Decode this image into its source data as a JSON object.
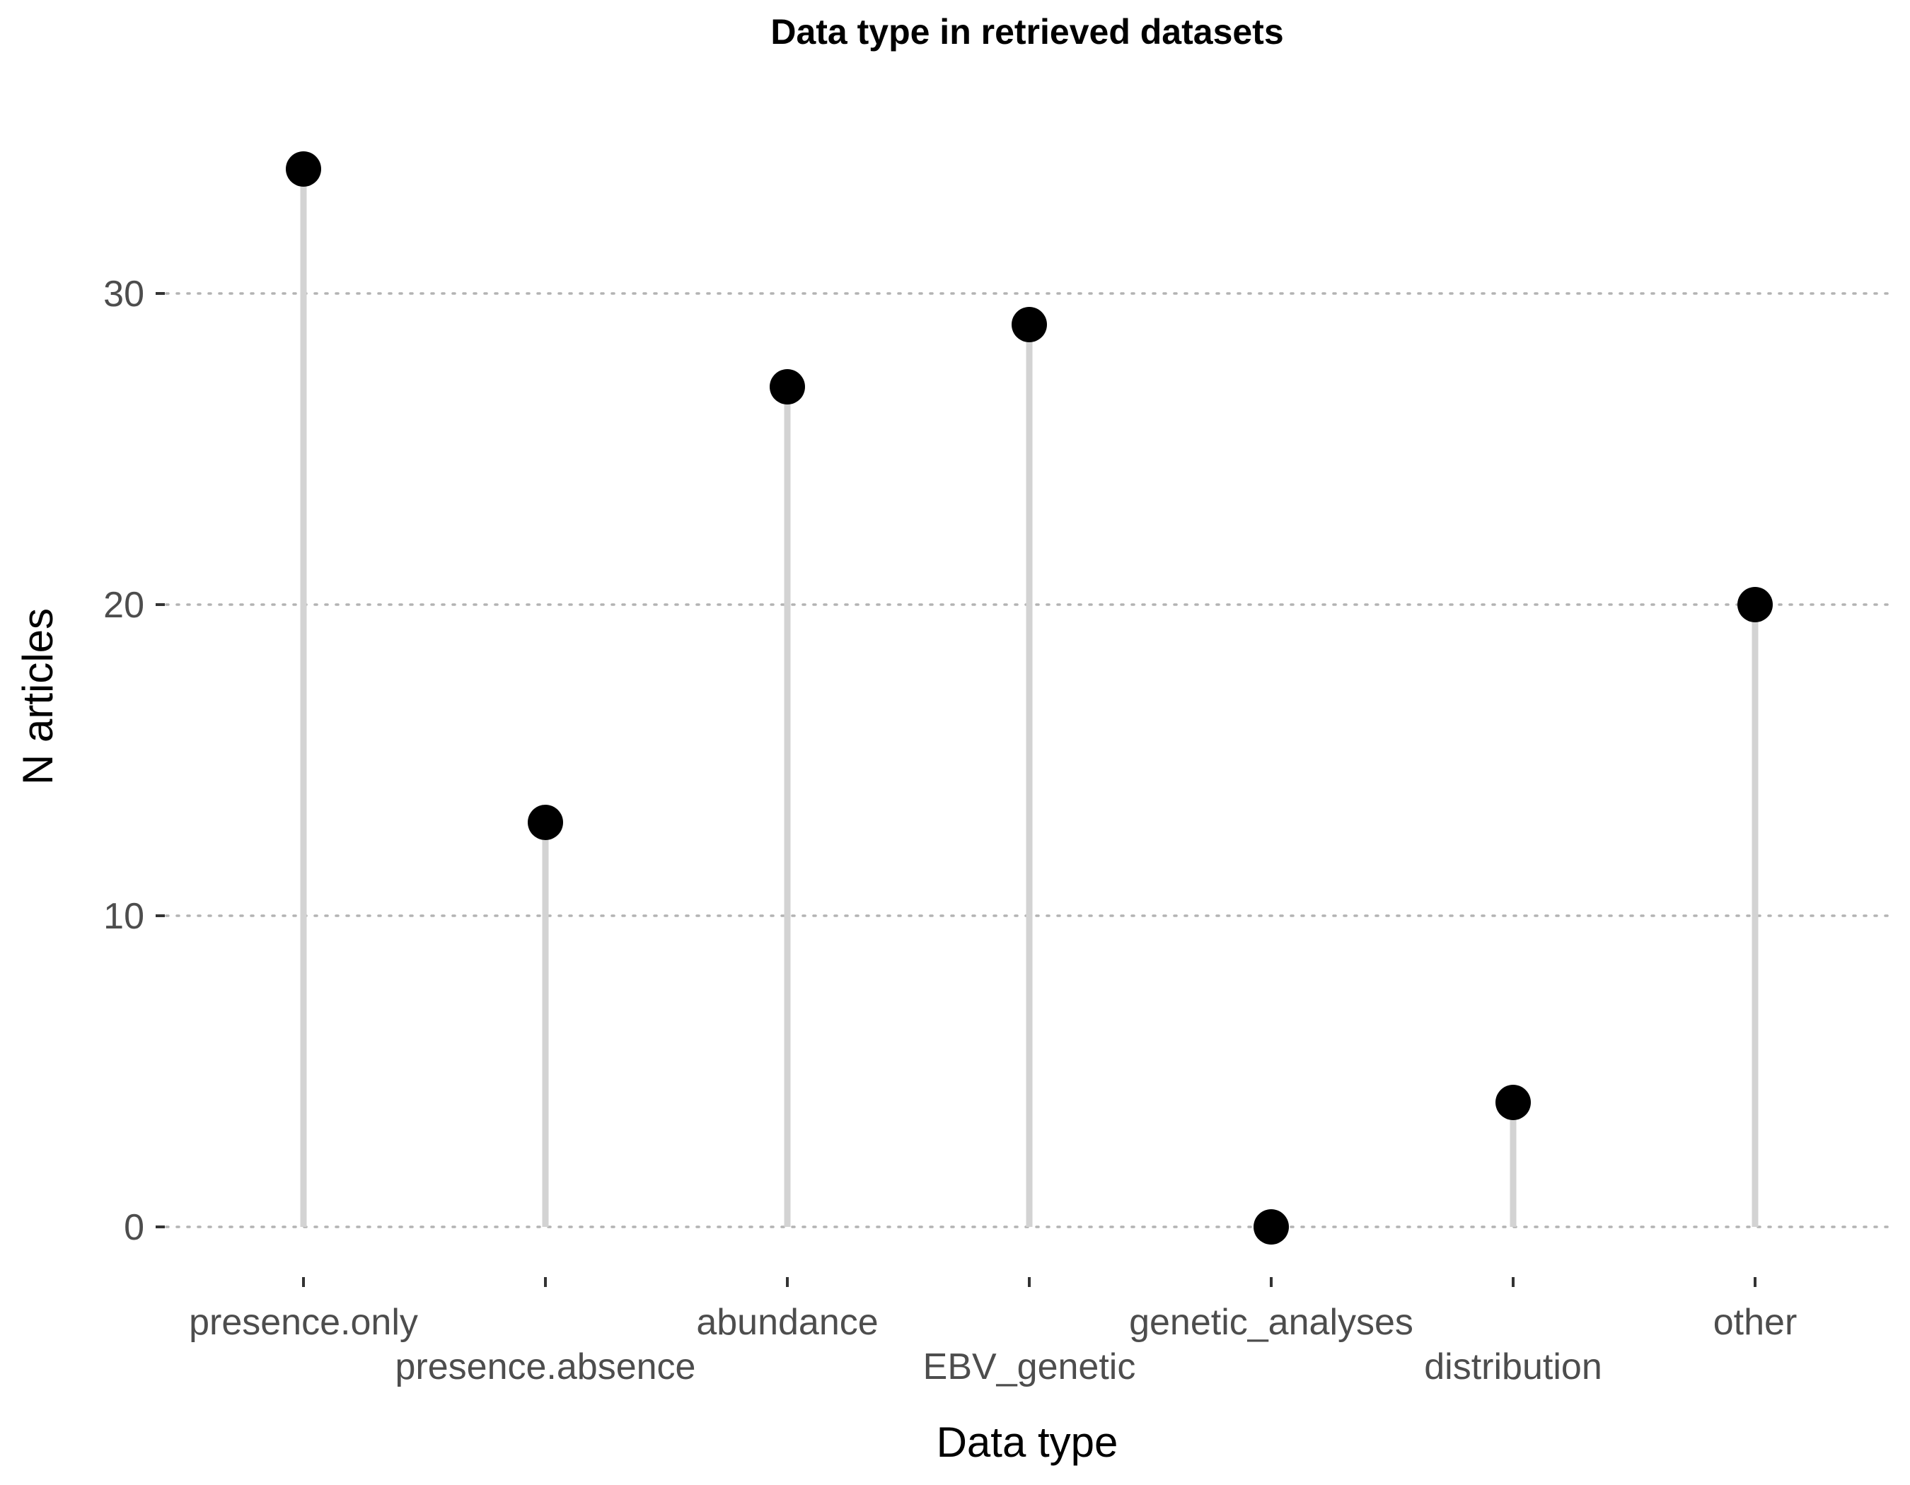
{
  "chart_data": {
    "type": "lollipop",
    "title": "Data type in retrieved datasets",
    "xlabel": "Data type",
    "ylabel": "N articles",
    "categories": [
      "presence.only",
      "presence.absence",
      "abundance",
      "EBV_genetic",
      "genetic_analyses",
      "distribution",
      "other"
    ],
    "values": [
      34,
      13,
      27,
      29,
      0,
      4,
      20
    ],
    "yticks": [
      0,
      10,
      20,
      30
    ],
    "ylim": [
      -1.5,
      35.5
    ],
    "grid": "horizontal dotted major",
    "legend": "none",
    "colors": {
      "stem": "#d3d3d3",
      "point": "#000000",
      "grid": "#b3b3b3",
      "tick_text": "#4d4d4d"
    }
  }
}
